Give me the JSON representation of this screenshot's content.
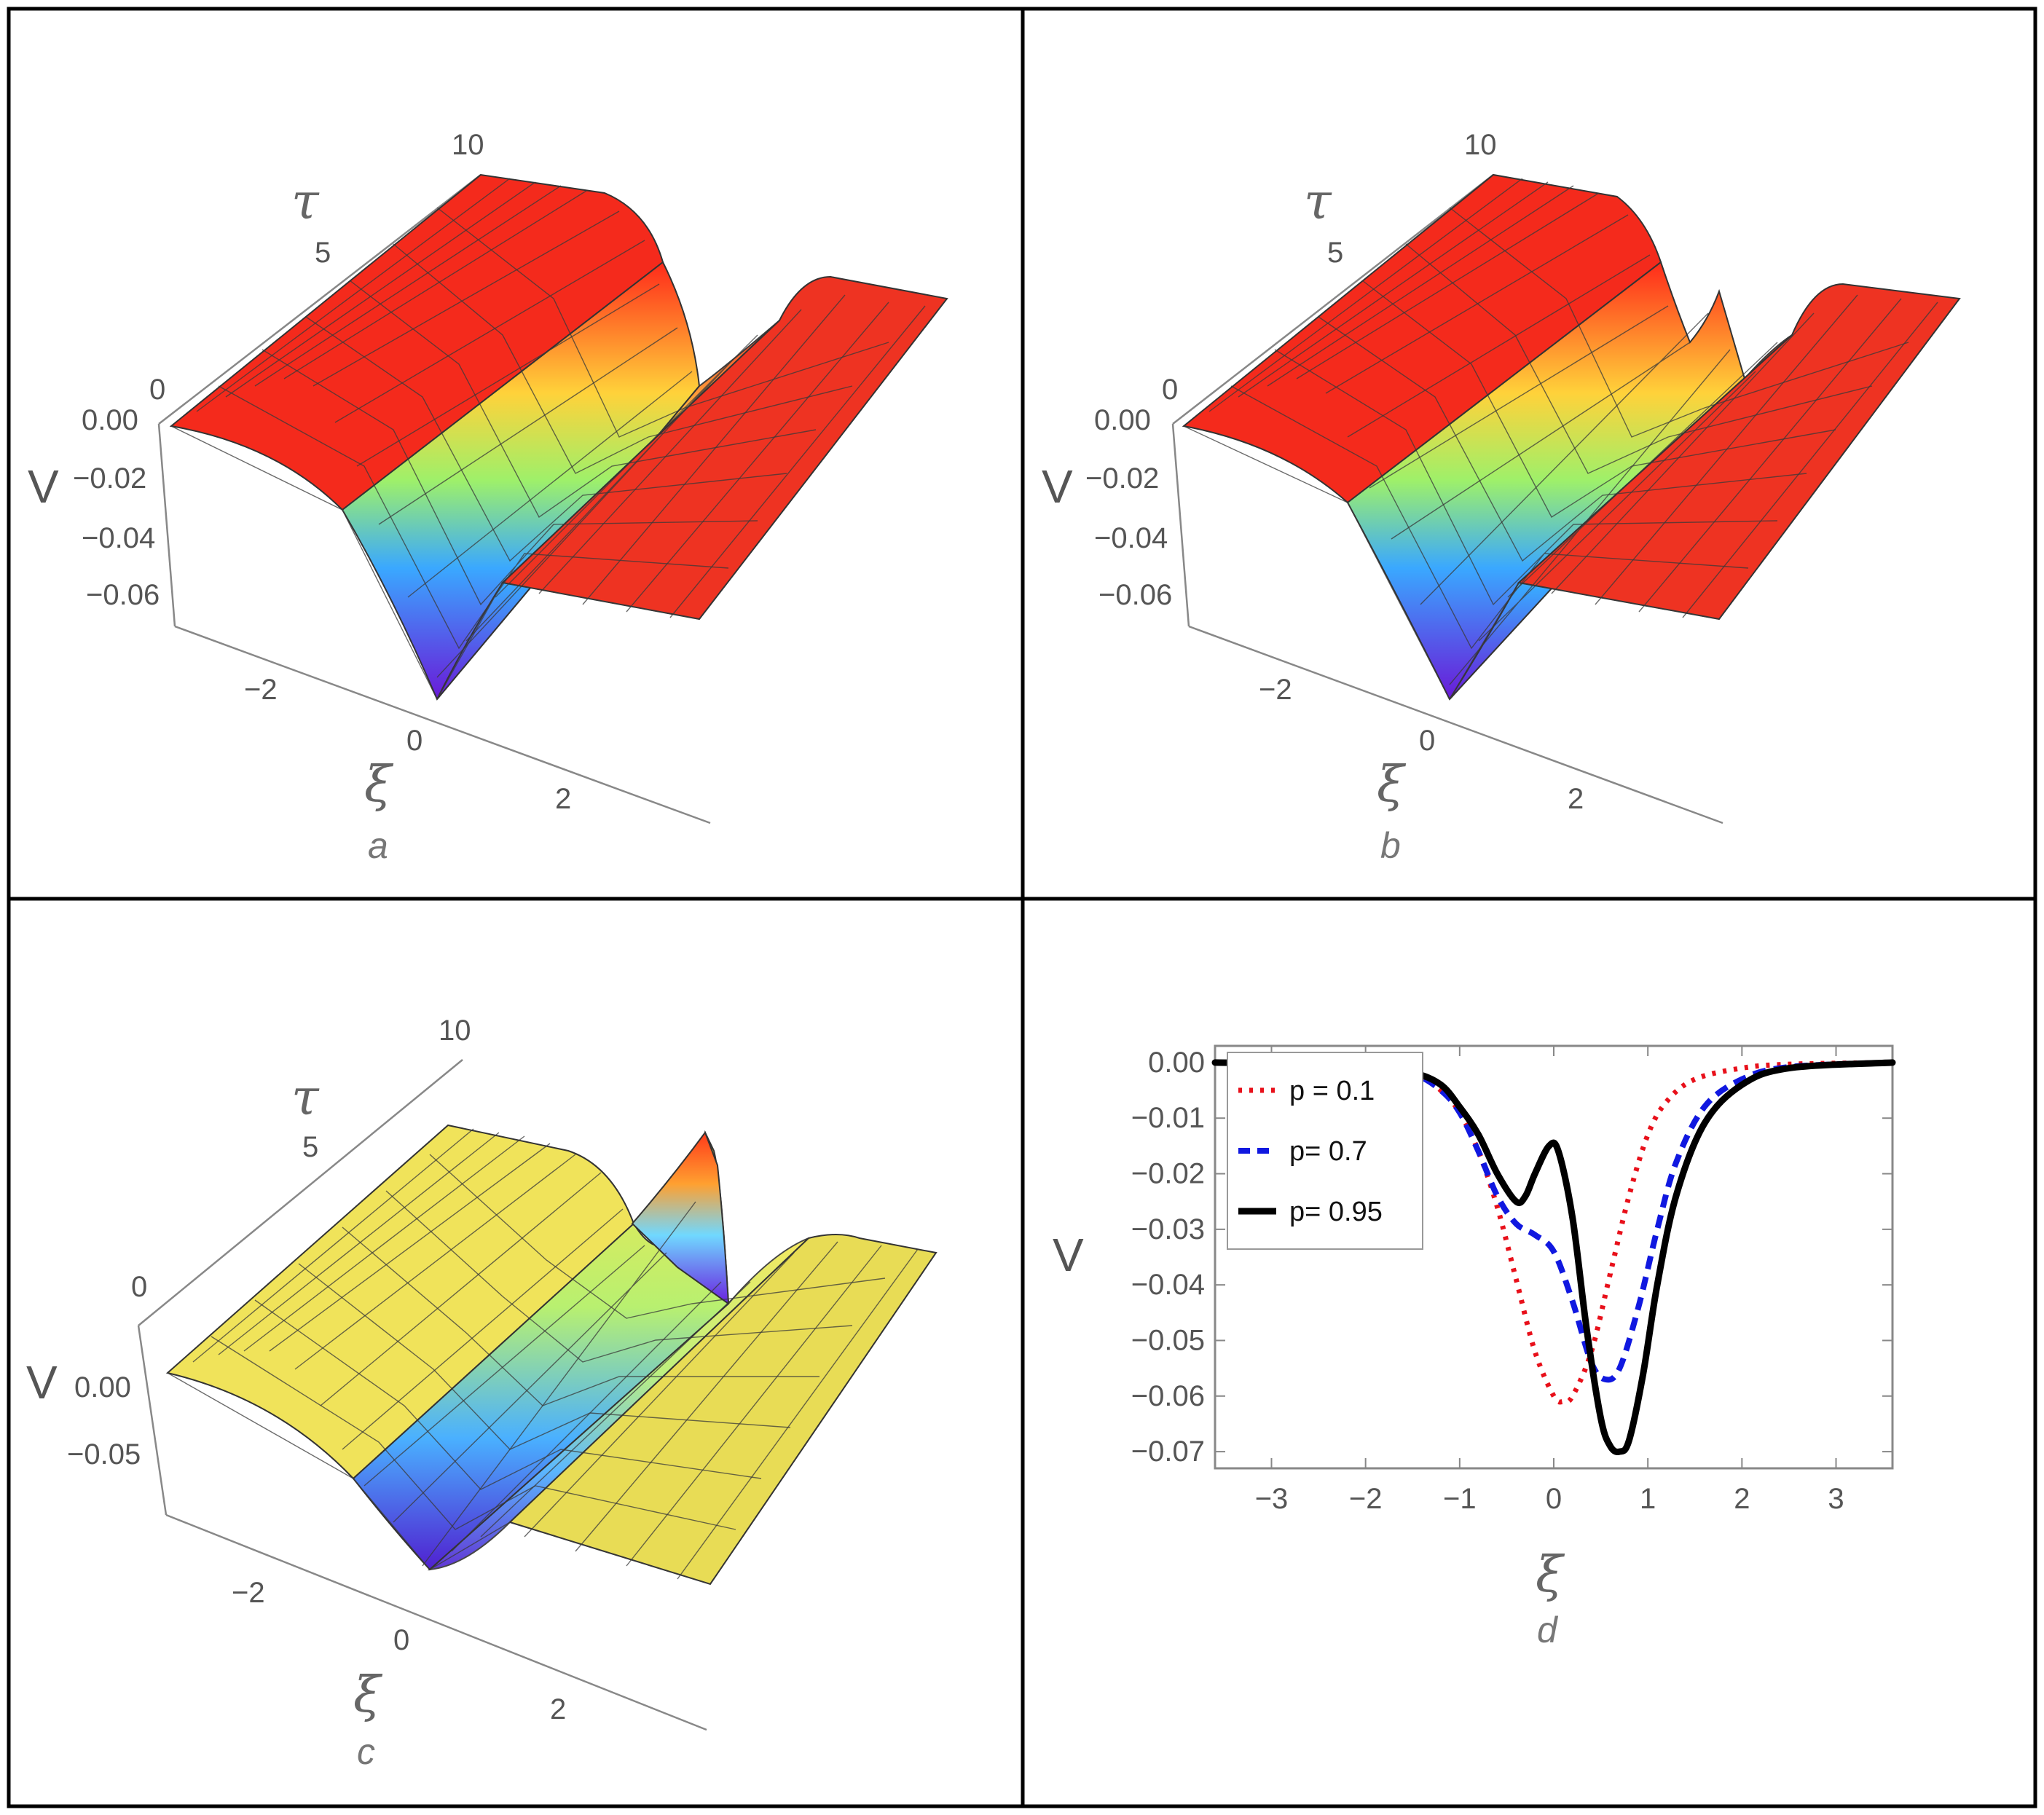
{
  "panels_3d": [
    {
      "label": "a",
      "axes": {
        "z_label": "V",
        "x_label": "ξ",
        "y_label": "τ"
      },
      "x_ticks": [
        "−2",
        "0",
        "2"
      ],
      "y_ticks": [
        "0",
        "5",
        "10"
      ],
      "z_ticks": [
        "0.00",
        "−0.02",
        "−0.04",
        "−0.06"
      ]
    },
    {
      "label": "b",
      "axes": {
        "z_label": "V",
        "x_label": "ξ",
        "y_label": "τ"
      },
      "x_ticks": [
        "−2",
        "0",
        "2"
      ],
      "y_ticks": [
        "0",
        "5",
        "10"
      ],
      "z_ticks": [
        "0.00",
        "−0.02",
        "−0.04",
        "−0.06"
      ]
    },
    {
      "label": "c",
      "axes": {
        "z_label": "V",
        "x_label": "ξ",
        "y_label": "τ"
      },
      "x_ticks": [
        "−2",
        "0",
        "2"
      ],
      "y_ticks": [
        "0",
        "5",
        "10"
      ],
      "z_ticks": [
        "0.00",
        "−0.05"
      ]
    }
  ],
  "chart_data": [
    {
      "type": "surface",
      "panel": "a",
      "xlabel": "ξ",
      "ylabel": "τ",
      "zlabel": "V",
      "xlim": [
        -3.5,
        3.5
      ],
      "ylim": [
        0,
        10
      ],
      "zlim": [
        -0.07,
        0
      ],
      "description_of_shape": "single trough",
      "colormap": "rainbow",
      "profile_x": [
        -3.5,
        -2,
        -1,
        -0.5,
        0,
        0.5,
        1,
        2,
        3.5
      ],
      "profile_v": [
        0,
        -0.004,
        -0.03,
        -0.055,
        -0.062,
        -0.045,
        -0.02,
        -0.003,
        0
      ]
    },
    {
      "type": "surface",
      "panel": "b",
      "xlabel": "ξ",
      "ylabel": "τ",
      "zlabel": "V",
      "xlim": [
        -3.5,
        3.5
      ],
      "ylim": [
        0,
        10
      ],
      "zlim": [
        -0.07,
        0
      ],
      "colormap": "rainbow",
      "profile_x": [
        -3.5,
        -2,
        -1,
        -0.5,
        0,
        0.5,
        1,
        2,
        3.5
      ],
      "profile_v": [
        0,
        -0.003,
        -0.022,
        -0.03,
        -0.033,
        -0.057,
        -0.035,
        -0.006,
        0
      ]
    },
    {
      "type": "surface",
      "panel": "c",
      "xlabel": "ξ",
      "ylabel": "τ",
      "zlabel": "V",
      "xlim": [
        -3.5,
        3.5
      ],
      "ylim": [
        0,
        10
      ],
      "zlim": [
        -0.07,
        0
      ],
      "colormap": "rainbow",
      "profile_x": [
        -3.5,
        -2,
        -1,
        -0.5,
        0,
        0.5,
        1,
        2,
        3.5
      ],
      "profile_v": [
        0,
        -0.002,
        -0.01,
        -0.025,
        -0.015,
        -0.068,
        -0.04,
        -0.008,
        0
      ]
    },
    {
      "type": "line",
      "panel": "d",
      "xlabel": "ξ",
      "ylabel": "V",
      "xlim": [
        -3.6,
        3.6
      ],
      "ylim": [
        -0.073,
        0.003
      ],
      "grid": false,
      "legend_position": "top-left",
      "x_ticks": [
        -3,
        -2,
        -1,
        0,
        1,
        2,
        3
      ],
      "y_ticks": [
        0.0,
        -0.01,
        -0.02,
        -0.03,
        -0.04,
        -0.05,
        -0.06,
        -0.07
      ],
      "y_tick_labels": [
        "0.00",
        "−0.01",
        "−0.02",
        "−0.03",
        "−0.04",
        "−0.05",
        "−0.06",
        "−0.07"
      ],
      "x_tick_labels": [
        "−3",
        "−2",
        "−1",
        "0",
        "1",
        "2",
        "3"
      ],
      "series": [
        {
          "name": "p = 0.1",
          "color": "#e8101a",
          "style": "dotted",
          "x": [
            -3.6,
            -2,
            -1.5,
            -1.2,
            -1,
            -0.8,
            -0.6,
            -0.4,
            -0.2,
            0,
            0.1,
            0.2,
            0.4,
            0.6,
            0.8,
            1,
            1.2,
            1.5,
            2,
            2.5,
            3.6
          ],
          "y": [
            0,
            -0.0005,
            -0.002,
            -0.005,
            -0.009,
            -0.016,
            -0.026,
            -0.039,
            -0.052,
            -0.06,
            -0.061,
            -0.06,
            -0.052,
            -0.038,
            -0.024,
            -0.013,
            -0.007,
            -0.003,
            -0.001,
            -0.0003,
            0
          ]
        },
        {
          "name": "p= 0.7",
          "color": "#1018e0",
          "style": "dashed",
          "x": [
            -3.6,
            -2,
            -1.5,
            -1.2,
            -1,
            -0.8,
            -0.6,
            -0.4,
            -0.2,
            0,
            0.2,
            0.4,
            0.55,
            0.7,
            0.9,
            1.1,
            1.3,
            1.6,
            2,
            2.5,
            3.6
          ],
          "y": [
            0,
            -0.0005,
            -0.002,
            -0.005,
            -0.009,
            -0.016,
            -0.024,
            -0.029,
            -0.031,
            -0.034,
            -0.043,
            -0.054,
            -0.057,
            -0.055,
            -0.044,
            -0.03,
            -0.018,
            -0.008,
            -0.003,
            -0.0008,
            0
          ]
        },
        {
          "name": "p= 0.95",
          "color": "#000000",
          "style": "solid",
          "x": [
            -3.6,
            -2,
            -1.5,
            -1.2,
            -1,
            -0.8,
            -0.6,
            -0.4,
            -0.3,
            -0.2,
            -0.05,
            0.05,
            0.2,
            0.35,
            0.5,
            0.6,
            0.7,
            0.8,
            0.95,
            1.1,
            1.3,
            1.6,
            2,
            2.5,
            3.6
          ],
          "y": [
            0,
            -0.0004,
            -0.0018,
            -0.004,
            -0.008,
            -0.013,
            -0.02,
            -0.025,
            -0.024,
            -0.02,
            -0.015,
            -0.016,
            -0.028,
            -0.048,
            -0.064,
            -0.069,
            -0.07,
            -0.068,
            -0.056,
            -0.04,
            -0.024,
            -0.011,
            -0.004,
            -0.001,
            0
          ]
        }
      ],
      "label": "d"
    }
  ]
}
